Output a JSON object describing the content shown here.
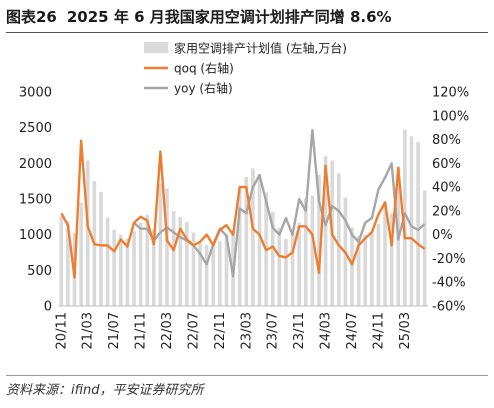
{
  "title": {
    "fig_label": "图表26",
    "text": "2025 年 6 月我国家用空调计划排产同增 8.6%"
  },
  "source": "资料来源：ifind，平安证券研究所",
  "colors": {
    "bars": "#d9d9d9",
    "qoq": "#ed7d31",
    "yoy": "#a6a6a6"
  },
  "chart_data": {
    "type": "bar",
    "x": [
      "20/11",
      "20/12",
      "21/01",
      "21/02",
      "21/03",
      "21/04",
      "21/05",
      "21/06",
      "21/07",
      "21/08",
      "21/09",
      "21/10",
      "21/11",
      "21/12",
      "22/01",
      "22/02",
      "22/03",
      "22/04",
      "22/05",
      "22/06",
      "22/07",
      "22/08",
      "22/09",
      "22/10",
      "22/11",
      "22/12",
      "23/01",
      "23/02",
      "23/03",
      "23/04",
      "23/05",
      "23/06",
      "23/07",
      "23/08",
      "23/09",
      "23/10",
      "23/11",
      "23/12",
      "24/01",
      "24/02",
      "24/03",
      "24/04",
      "24/05",
      "24/06",
      "24/07",
      "24/08",
      "24/09",
      "24/10",
      "24/11",
      "24/12",
      "25/01",
      "25/02",
      "25/03",
      "25/04",
      "25/05",
      "25/06"
    ],
    "x_tick_labels": [
      "20/11",
      "21/03",
      "21/07",
      "21/11",
      "22/03",
      "22/07",
      "22/11",
      "23/03",
      "23/07",
      "23/11",
      "24/03",
      "24/07",
      "24/11",
      "25/03"
    ],
    "series": [
      {
        "name": "家用空调排产计划值 (左轴,万台)",
        "type": "bar",
        "axis": "left",
        "values": [
          1260,
          1190,
          1020,
          1450,
          2040,
          1750,
          1600,
          1240,
          1070,
          1000,
          940,
          1050,
          1170,
          1280,
          1070,
          1720,
          1650,
          1330,
          1250,
          1180,
          1030,
          880,
          850,
          880,
          910,
          1000,
          1050,
          1660,
          1810,
          1930,
          1850,
          1590,
          1320,
          1100,
          940,
          1020,
          1170,
          1510,
          1550,
          1840,
          2100,
          2040,
          1860,
          1520,
          1100,
          980,
          1000,
          1020,
          1150,
          1470,
          1300,
          1960,
          2470,
          2380,
          2300,
          1620
        ]
      },
      {
        "name": "qoq (右轴)",
        "type": "line",
        "axis": "right",
        "values": [
          0.18,
          0.08,
          -0.36,
          0.79,
          0.07,
          -0.08,
          -0.09,
          -0.09,
          -0.14,
          -0.04,
          -0.1,
          0.1,
          0.15,
          0.12,
          -0.08,
          0.7,
          -0.05,
          -0.13,
          0.05,
          -0.04,
          -0.09,
          -0.06,
          0.0,
          -0.09,
          0.04,
          0.08,
          0.0,
          0.4,
          0.4,
          0.05,
          0.0,
          -0.13,
          -0.1,
          -0.18,
          -0.19,
          -0.15,
          0.07,
          0.07,
          0.0,
          -0.32,
          0.58,
          0.0,
          -0.09,
          -0.15,
          -0.25,
          -0.09,
          -0.03,
          0.02,
          0.17,
          0.27,
          -0.09,
          0.56,
          -0.03,
          -0.03,
          -0.08,
          -0.12
        ]
      },
      {
        "name": "yoy (右轴)",
        "type": "line",
        "axis": "right",
        "values": [
          null,
          null,
          null,
          null,
          null,
          null,
          null,
          null,
          null,
          null,
          null,
          0.1,
          0.05,
          0.05,
          -0.05,
          0.02,
          0.06,
          0.02,
          -0.02,
          -0.05,
          -0.09,
          -0.16,
          -0.25,
          -0.08,
          0.05,
          -0.01,
          -0.35,
          0.22,
          0.18,
          0.4,
          0.5,
          0.28,
          0.06,
          0.0,
          0.14,
          0.0,
          0.3,
          0.2,
          0.88,
          0.28,
          0.08,
          0.24,
          0.2,
          0.12,
          0.0,
          -0.06,
          0.1,
          0.14,
          0.38,
          0.48,
          0.6,
          -0.04,
          0.18,
          0.07,
          0.04,
          0.09
        ]
      }
    ],
    "y_left": {
      "ylim": [
        0,
        3000
      ],
      "ticks": [
        0,
        500,
        1000,
        1500,
        2000,
        2500,
        3000
      ],
      "tick_labels": [
        "0",
        "500",
        "1000",
        "1500",
        "2000",
        "2500",
        "3000"
      ]
    },
    "y_right": {
      "ylim": [
        -0.6,
        1.2
      ],
      "ticks": [
        -0.6,
        -0.4,
        -0.2,
        0,
        0.2,
        0.4,
        0.6,
        0.8,
        1.0,
        1.2
      ],
      "tick_labels": [
        "-60%",
        "-40%",
        "-20%",
        "0%",
        "20%",
        "40%",
        "60%",
        "80%",
        "100%",
        "120%"
      ]
    },
    "legend": {
      "position": "top-center",
      "items": [
        "家用空调排产计划值 (左轴,万台)",
        "qoq (右轴)",
        "yoy (右轴)"
      ]
    },
    "grid": false
  }
}
